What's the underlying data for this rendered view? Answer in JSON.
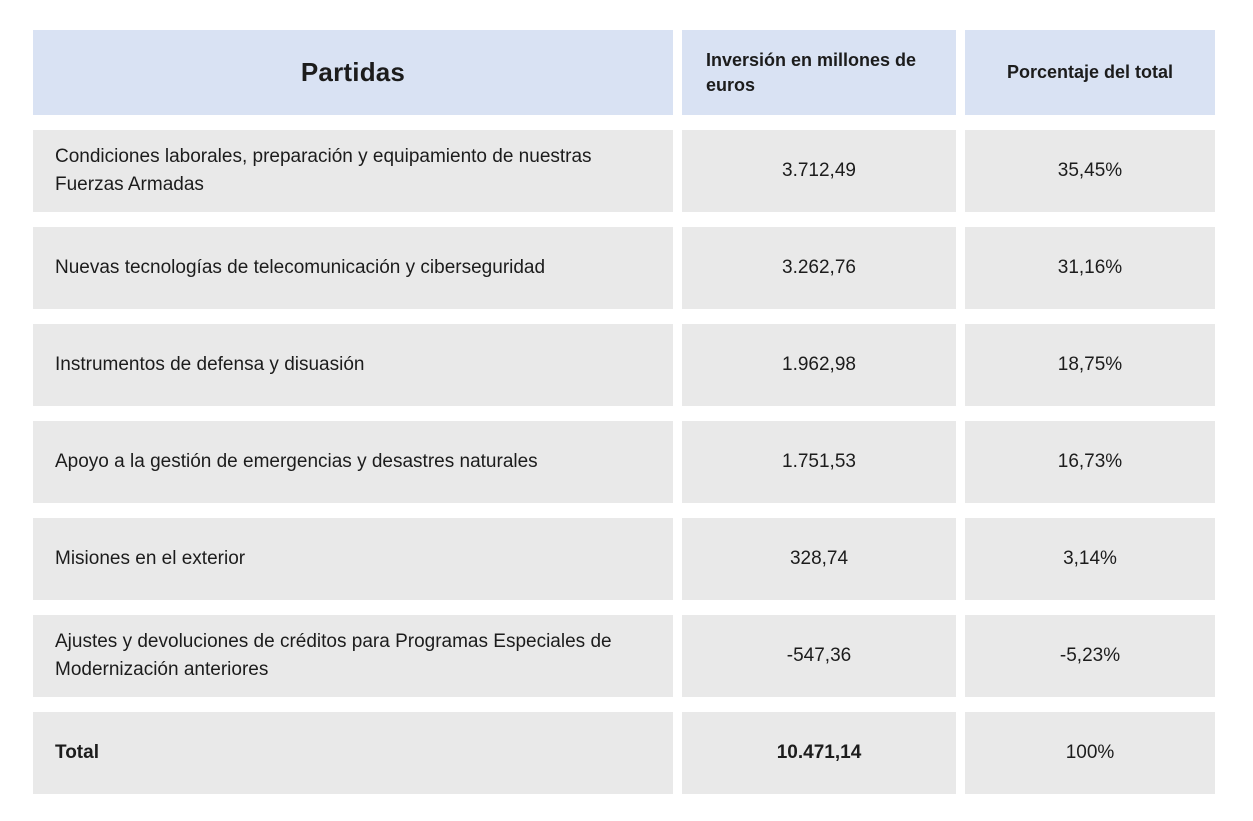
{
  "table": {
    "columns": [
      {
        "label": "Partidas"
      },
      {
        "label": "Inversión en millones de euros"
      },
      {
        "label": "Porcentaje del total"
      }
    ],
    "rows": [
      {
        "partida": "Condiciones laborales, preparación y equipamiento de nuestras Fuerzas Armadas",
        "inversion": "3.712,49",
        "porcentaje": "35,45%"
      },
      {
        "partida": "Nuevas tecnologías de telecomunicación y ciberseguridad",
        "inversion": "3.262,76",
        "porcentaje": "31,16%"
      },
      {
        "partida": "Instrumentos de defensa y disuasión",
        "inversion": "1.962,98",
        "porcentaje": "18,75%"
      },
      {
        "partida": "Apoyo a la gestión de emergencias y desastres naturales",
        "inversion": "1.751,53",
        "porcentaje": "16,73%"
      },
      {
        "partida": "Misiones en el exterior",
        "inversion": "328,74",
        "porcentaje": "3,14%"
      },
      {
        "partida": "Ajustes y devoluciones de créditos para Programas Especiales de Modernización anteriores",
        "inversion": "-547,36",
        "porcentaje": "-5,23%"
      }
    ],
    "total": {
      "label": "Total",
      "inversion": "10.471,14",
      "porcentaje": "100%"
    }
  },
  "colors": {
    "header_bg": "#d9e2f3",
    "row_bg": "#e9e9e9",
    "text": "#1c1c1c"
  }
}
